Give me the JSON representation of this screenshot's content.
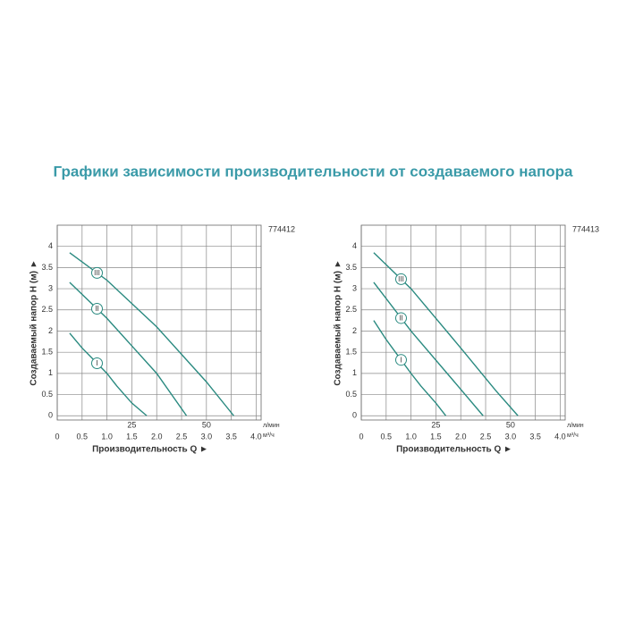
{
  "title": "Графики зависимости производительности от создаваемого напора",
  "chart_data": [
    {
      "type": "line",
      "model": "774412",
      "x_label": "Производительность Q ►",
      "y_label": "Создаваемый напор Н (м) ►",
      "x_unit": "м³/ч",
      "x2_unit": "л/мин",
      "xlim": [
        0,
        4.1
      ],
      "ylim": [
        -0.1,
        4.5
      ],
      "xticks": [
        0,
        0.5,
        {
          "value": 1,
          "label": "1.0"
        },
        1.5,
        {
          "value": 2,
          "label": "2.0"
        },
        2.5,
        {
          "value": 3,
          "label": "3.0"
        },
        3.5,
        {
          "value": 4,
          "label": "4.0"
        }
      ],
      "x2ticks": [
        {
          "value": 1.5,
          "label": "25"
        },
        {
          "value": 3,
          "label": "50"
        }
      ],
      "yticks": [
        0,
        0.5,
        1,
        1.5,
        2,
        2.5,
        3,
        3.5,
        4
      ],
      "grid": true,
      "series": [
        {
          "name": "I",
          "color": "#2a8a80",
          "x": [
            0.25,
            0.5,
            0.75,
            1.0,
            1.2,
            1.5,
            1.8
          ],
          "values": [
            1.95,
            1.6,
            1.3,
            1.0,
            0.7,
            0.3,
            0
          ]
        },
        {
          "name": "II",
          "color": "#2a8a80",
          "x": [
            0.25,
            1.0,
            1.5,
            2.0,
            2.6
          ],
          "values": [
            3.15,
            2.3,
            1.65,
            1.0,
            0
          ]
        },
        {
          "name": "III",
          "color": "#2a8a80",
          "x": [
            0.25,
            1.0,
            2.0,
            3.0,
            3.55
          ],
          "values": [
            3.85,
            3.2,
            2.1,
            0.8,
            0
          ]
        }
      ]
    },
    {
      "type": "line",
      "model": "774413",
      "x_label": "Производительность Q ►",
      "y_label": "Создаваемый напор Н (м) ►",
      "x_unit": "м³/ч",
      "x2_unit": "л/мин",
      "xlim": [
        0,
        4.1
      ],
      "ylim": [
        -0.1,
        4.5
      ],
      "xticks": [
        0,
        0.5,
        {
          "value": 1,
          "label": "1.0"
        },
        1.5,
        {
          "value": 2,
          "label": "2.0"
        },
        2.5,
        {
          "value": 3,
          "label": "3.0"
        },
        3.5,
        {
          "value": 4,
          "label": "4.0"
        }
      ],
      "x2ticks": [
        {
          "value": 1.5,
          "label": "25"
        },
        {
          "value": 3,
          "label": "50"
        }
      ],
      "yticks": [
        0,
        0.5,
        1,
        1.5,
        2,
        2.5,
        3,
        3.5,
        4
      ],
      "grid": true,
      "series": [
        {
          "name": "I",
          "color": "#2a8a80",
          "x": [
            0.25,
            0.5,
            0.75,
            1.0,
            1.2,
            1.5,
            1.7
          ],
          "values": [
            2.25,
            1.8,
            1.4,
            1.0,
            0.7,
            0.3,
            0
          ]
        },
        {
          "name": "II",
          "color": "#2a8a80",
          "x": [
            0.25,
            1.0,
            1.8,
            2.45
          ],
          "values": [
            3.15,
            2.0,
            0.9,
            0
          ]
        },
        {
          "name": "III",
          "color": "#2a8a80",
          "x": [
            0.25,
            1.0,
            2.0,
            2.7,
            3.15
          ],
          "values": [
            3.85,
            3.0,
            1.6,
            0.6,
            0
          ]
        }
      ]
    }
  ]
}
